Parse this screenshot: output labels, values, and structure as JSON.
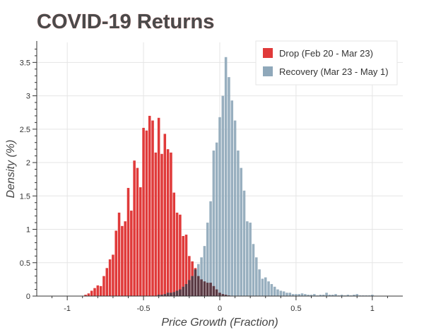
{
  "chart_data": {
    "type": "bar",
    "title": "COVID-19 Returns",
    "xlabel": "Price Growth (Fraction)",
    "ylabel": "Density (%)",
    "xlim": [
      -1.2,
      1.2
    ],
    "ylim": [
      0,
      3.8
    ],
    "xticks": [
      -1,
      -0.5,
      0,
      0.5,
      1
    ],
    "xtick_labels": [
      "-1",
      "-0.5",
      "0",
      "0.5",
      "1"
    ],
    "yticks": [
      0,
      0.5,
      1,
      1.5,
      2,
      2.5,
      3,
      3.5
    ],
    "ytick_labels": [
      "0",
      "0.5",
      "1",
      "1.5",
      "2",
      "2.5",
      "3",
      "3.5"
    ],
    "grid": true,
    "legend_position": "top-right",
    "bin_width": 0.02,
    "colors": {
      "drop": "#e03a3a",
      "recovery": "#8fa8ba",
      "overlap": "#5a3a44"
    },
    "series": [
      {
        "name": "Drop (Feb 20 - Mar 23)",
        "x": [
          -0.88,
          -0.86,
          -0.84,
          -0.82,
          -0.8,
          -0.78,
          -0.76,
          -0.74,
          -0.72,
          -0.7,
          -0.68,
          -0.66,
          -0.64,
          -0.62,
          -0.6,
          -0.58,
          -0.56,
          -0.54,
          -0.52,
          -0.5,
          -0.48,
          -0.46,
          -0.44,
          -0.42,
          -0.4,
          -0.38,
          -0.36,
          -0.34,
          -0.32,
          -0.3,
          -0.28,
          -0.26,
          -0.24,
          -0.22,
          -0.2,
          -0.18,
          -0.16,
          -0.14,
          -0.12,
          -0.1,
          -0.08,
          -0.06,
          -0.04,
          -0.02,
          0.0,
          0.02,
          0.04,
          0.06
        ],
        "values": [
          0.02,
          0.04,
          0.08,
          0.12,
          0.16,
          0.15,
          0.3,
          0.42,
          0.55,
          0.62,
          0.98,
          1.25,
          1.05,
          1.12,
          1.62,
          1.28,
          2.03,
          1.92,
          1.63,
          2.52,
          2.48,
          2.7,
          2.63,
          2.15,
          2.67,
          2.13,
          2.43,
          2.2,
          2.15,
          1.55,
          1.25,
          1.22,
          0.9,
          0.92,
          0.6,
          0.52,
          0.42,
          0.3,
          0.25,
          0.22,
          0.2,
          0.2,
          0.15,
          0.1,
          0.05,
          0.03,
          0.02,
          0.01
        ]
      },
      {
        "name": "Recovery (Mar 23 - May 1)",
        "x": [
          -0.4,
          -0.38,
          -0.36,
          -0.34,
          -0.32,
          -0.3,
          -0.28,
          -0.26,
          -0.24,
          -0.22,
          -0.2,
          -0.18,
          -0.16,
          -0.14,
          -0.12,
          -0.1,
          -0.08,
          -0.06,
          -0.04,
          -0.02,
          0.0,
          0.02,
          0.04,
          0.06,
          0.08,
          0.1,
          0.12,
          0.14,
          0.16,
          0.18,
          0.2,
          0.22,
          0.24,
          0.26,
          0.28,
          0.3,
          0.32,
          0.34,
          0.36,
          0.38,
          0.4,
          0.42,
          0.44,
          0.46,
          0.48,
          0.5,
          0.52,
          0.54,
          0.56,
          0.58,
          0.6,
          0.62,
          0.64,
          0.66,
          0.68,
          0.7,
          0.72,
          0.74,
          0.76,
          0.78,
          0.8,
          0.82,
          0.84,
          0.86,
          0.88,
          0.9,
          0.92,
          0.94,
          0.96,
          0.98,
          1.0
        ],
        "values": [
          0.02,
          0.02,
          0.03,
          0.05,
          0.05,
          0.06,
          0.08,
          0.1,
          0.14,
          0.18,
          0.24,
          0.3,
          0.4,
          0.48,
          0.58,
          0.75,
          1.1,
          1.42,
          2.18,
          2.3,
          2.68,
          3.0,
          3.58,
          3.28,
          2.93,
          2.63,
          2.18,
          1.92,
          1.58,
          1.12,
          1.1,
          0.78,
          0.58,
          0.4,
          0.26,
          0.28,
          0.22,
          0.18,
          0.14,
          0.1,
          0.08,
          0.07,
          0.05,
          0.05,
          0.03,
          0.03,
          0.03,
          0.04,
          0.03,
          0.02,
          0.02,
          0.03,
          0.01,
          0.02,
          0.02,
          0.05,
          0.02,
          0.02,
          0.03,
          0.01,
          0.02,
          0.01,
          0.02,
          0.01,
          0.02,
          0.03,
          0.01,
          0.01,
          0.01,
          0.01,
          0.02
        ]
      }
    ]
  }
}
